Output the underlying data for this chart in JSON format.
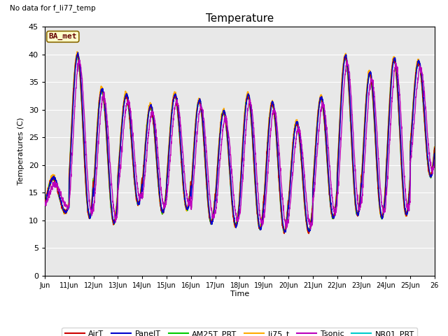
{
  "title": "Temperature",
  "ylabel": "Temperatures (C)",
  "xlabel": "Time",
  "note": "No data for f_li77_temp",
  "legend_label": "BA_met",
  "ylim": [
    0,
    45
  ],
  "yticks": [
    0,
    5,
    10,
    15,
    20,
    25,
    30,
    35,
    40,
    45
  ],
  "series": {
    "AirT": {
      "color": "#cc0000",
      "zorder": 4,
      "lw": 1.0
    },
    "PanelT": {
      "color": "#0000cc",
      "zorder": 5,
      "lw": 1.0
    },
    "AM25T_PRT": {
      "color": "#00cc00",
      "zorder": 3,
      "lw": 1.0
    },
    "li75_t": {
      "color": "#ffaa00",
      "zorder": 2,
      "lw": 1.3
    },
    "Tsonic": {
      "color": "#bb00bb",
      "zorder": 6,
      "lw": 1.0
    },
    "NR01_PRT": {
      "color": "#00cccc",
      "zorder": 1,
      "lw": 1.5
    }
  },
  "peaks": [
    17.5,
    39.8,
    33.5,
    32.5,
    30.5,
    32.5,
    31.5,
    29.5,
    32.5,
    31.0,
    27.5,
    32.0,
    39.5,
    36.5,
    39.0,
    38.5
  ],
  "troughs": [
    11.5,
    10.5,
    9.5,
    13.0,
    11.5,
    12.0,
    9.5,
    9.0,
    8.5,
    8.0,
    8.0,
    10.5,
    11.0,
    10.5,
    11.0,
    18.0
  ],
  "xtick_positions": [
    10,
    11,
    12,
    13,
    14,
    15,
    16,
    17,
    18,
    19,
    20,
    21,
    22,
    23,
    24,
    25,
    26
  ],
  "xtick_labels": [
    "Jun",
    "11Jun",
    "12Jun",
    "13Jun",
    "14Jun",
    "15Jun",
    "16Jun",
    "17Jun",
    "18Jun",
    "19Jun",
    "20Jun",
    "21Jun",
    "22Jun",
    "23Jun",
    "24Jun",
    "25Jun",
    "26"
  ],
  "plot_bg": "#e8e8e8",
  "fig_bg": "#ffffff",
  "grid_color": "#ffffff",
  "band_color": "#d8d8d8"
}
